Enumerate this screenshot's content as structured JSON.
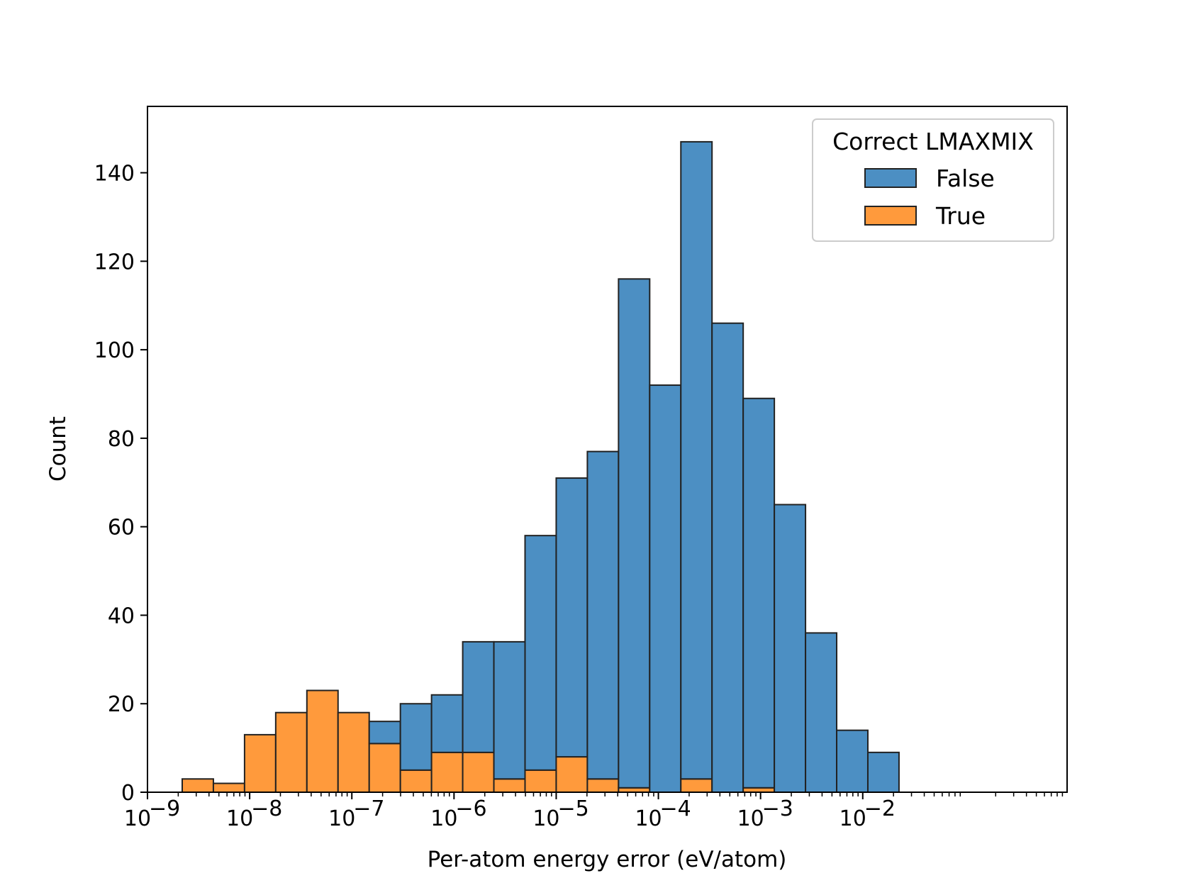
{
  "chart_data": {
    "type": "bar",
    "stacked": true,
    "title": "",
    "xlabel": "Per-atom energy error (eV/atom)",
    "ylabel": "Count",
    "xscale": "log",
    "xlim_exp": [
      -9.0,
      0.0
    ],
    "x_tick_exponents": [
      -9,
      -8,
      -7,
      -6,
      -5,
      -4,
      -3,
      -2
    ],
    "x_tick_base": "10",
    "x_tick_exp_labels": [
      "−9",
      "−8",
      "−7",
      "−6",
      "−5",
      "−4",
      "−3",
      "−2"
    ],
    "ylim": [
      0,
      155
    ],
    "y_ticks": [
      0,
      20,
      40,
      60,
      80,
      100,
      120,
      140
    ],
    "y_tick_labels": [
      "0",
      "20",
      "40",
      "60",
      "80",
      "100",
      "120",
      "140"
    ],
    "bin_edges_log10": [
      -8.66,
      -8.355,
      -8.05,
      -7.745,
      -7.44,
      -7.135,
      -6.83,
      -6.525,
      -6.22,
      -5.915,
      -5.61,
      -5.305,
      -5.0,
      -4.695,
      -4.39,
      -4.085,
      -3.78,
      -3.475,
      -3.17,
      -2.865,
      -2.56,
      -2.255,
      -1.95,
      -1.645
    ],
    "series": [
      {
        "name": "False",
        "color": "#4c8fc3",
        "values": [
          0,
          0,
          0,
          0,
          0,
          0,
          5,
          15,
          13,
          25,
          31,
          53,
          63,
          74,
          115,
          92,
          144,
          106,
          88,
          65,
          36,
          14,
          9
        ]
      },
      {
        "name": "True",
        "color": "#ff9a3c",
        "values": [
          3,
          2,
          13,
          18,
          23,
          18,
          11,
          5,
          9,
          9,
          3,
          5,
          8,
          3,
          1,
          0,
          3,
          0,
          1,
          0,
          0,
          0,
          0
        ]
      }
    ],
    "legend": {
      "title": "Correct LMAXMIX",
      "location": "top-right",
      "entries": [
        "False",
        "True"
      ]
    }
  }
}
